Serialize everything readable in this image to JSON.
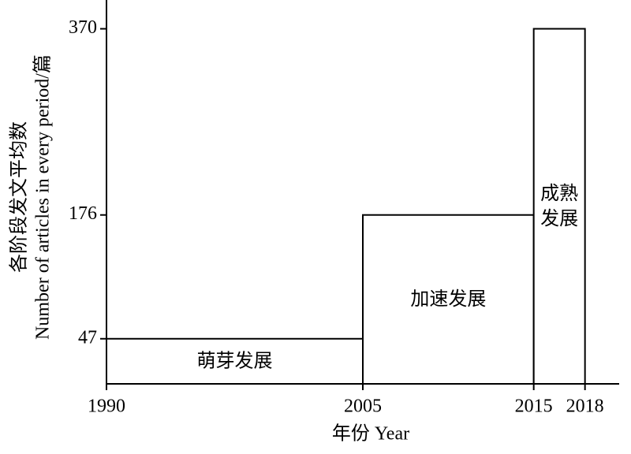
{
  "chart_data": {
    "type": "histogram",
    "bins": [
      1990,
      2005,
      2015,
      2018
    ],
    "values": [
      47,
      176,
      370
    ],
    "annotations": [
      [
        "萌芽发展"
      ],
      [
        "加速发展"
      ],
      [
        "成熟",
        "发展"
      ]
    ],
    "xlabel": "年份 Year",
    "ylabel": [
      "各阶段发文平均数",
      "Number of articles in every period/篇"
    ],
    "xlim": [
      1990,
      2020
    ],
    "xticks": [
      1990,
      2005,
      2015,
      2018
    ],
    "ylim": [
      0,
      400
    ],
    "yticks": [
      47,
      176,
      370
    ],
    "color": "#ffffff",
    "edgecolor": "#000000",
    "grid": false
  }
}
